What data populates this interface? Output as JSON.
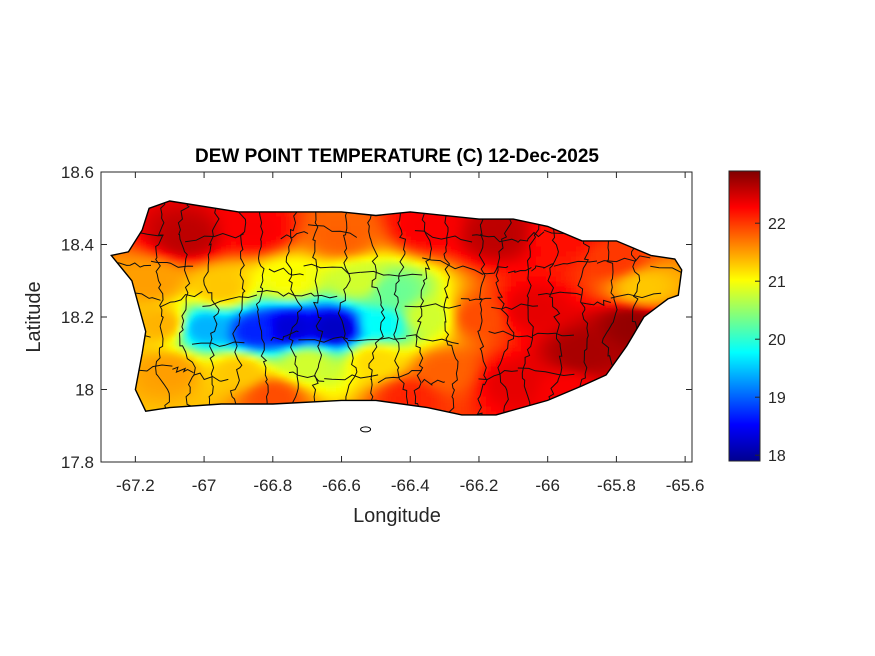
{
  "chart_data": {
    "type": "heatmap",
    "title": "DEW POINT TEMPERATURE (C) 12-Dec-2025",
    "xlabel": "Longitude",
    "ylabel": "Latitude",
    "xlim": [
      -67.3,
      -65.58
    ],
    "ylim": [
      17.8,
      18.6
    ],
    "x_ticks": [
      -67.2,
      -67,
      -66.8,
      -66.6,
      -66.4,
      -66.2,
      -66,
      -65.8,
      -65.6
    ],
    "x_tick_labels": [
      "-67.2",
      "-67",
      "-66.8",
      "-66.6",
      "-66.4",
      "-66.2",
      "-66",
      "-65.8",
      "-65.6"
    ],
    "y_ticks": [
      17.8,
      18,
      18.2,
      18.4,
      18.6
    ],
    "y_tick_labels": [
      "17.8",
      "18",
      "18.2",
      "18.4",
      "18.6"
    ],
    "colorbar": {
      "colormap": "jet",
      "range": [
        17.9,
        22.9
      ],
      "ticks": [
        18,
        19,
        20,
        21,
        22
      ],
      "tick_labels": [
        "18",
        "19",
        "20",
        "21",
        "22"
      ],
      "colors": [
        "#00008f",
        "#0000ff",
        "#00ffff",
        "#ffff00",
        "#ff0000",
        "#800000"
      ]
    },
    "coastline": [
      [
        -67.27,
        18.37
      ],
      [
        -67.22,
        18.38
      ],
      [
        -67.18,
        18.44
      ],
      [
        -67.16,
        18.5
      ],
      [
        -67.1,
        18.52
      ],
      [
        -66.9,
        18.49
      ],
      [
        -66.7,
        18.49
      ],
      [
        -66.6,
        18.49
      ],
      [
        -66.5,
        18.48
      ],
      [
        -66.4,
        18.49
      ],
      [
        -66.2,
        18.47
      ],
      [
        -66.1,
        18.47
      ],
      [
        -66.0,
        18.45
      ],
      [
        -65.9,
        18.41
      ],
      [
        -65.8,
        18.41
      ],
      [
        -65.7,
        18.37
      ],
      [
        -65.63,
        18.36
      ],
      [
        -65.61,
        18.33
      ],
      [
        -65.62,
        18.26
      ],
      [
        -65.65,
        18.25
      ],
      [
        -65.72,
        18.2
      ],
      [
        -65.77,
        18.12
      ],
      [
        -65.83,
        18.04
      ],
      [
        -65.9,
        18.01
      ],
      [
        -66.0,
        17.97
      ],
      [
        -66.15,
        17.93
      ],
      [
        -66.25,
        17.93
      ],
      [
        -66.35,
        17.95
      ],
      [
        -66.5,
        17.97
      ],
      [
        -66.6,
        17.97
      ],
      [
        -66.8,
        17.96
      ],
      [
        -66.95,
        17.96
      ],
      [
        -67.1,
        17.95
      ],
      [
        -67.17,
        17.94
      ],
      [
        -67.2,
        18.0
      ],
      [
        -67.18,
        18.1
      ],
      [
        -67.17,
        18.16
      ],
      [
        -67.21,
        18.3
      ],
      [
        -67.27,
        18.37
      ]
    ],
    "islets": [
      {
        "x": -66.53,
        "y": 17.89,
        "name": "Caja de Muertos"
      }
    ],
    "field_anchors": [
      {
        "x": -67.05,
        "y": 18.42,
        "value": 22.6
      },
      {
        "x": -66.85,
        "y": 18.44,
        "value": 22.3
      },
      {
        "x": -66.6,
        "y": 18.42,
        "value": 21.8
      },
      {
        "x": -66.35,
        "y": 18.45,
        "value": 22.3
      },
      {
        "x": -66.15,
        "y": 18.43,
        "value": 22.6
      },
      {
        "x": -65.95,
        "y": 18.42,
        "value": 22.2
      },
      {
        "x": -65.8,
        "y": 18.36,
        "value": 22.0
      },
      {
        "x": -65.72,
        "y": 18.28,
        "value": 21.3
      },
      {
        "x": -65.75,
        "y": 18.18,
        "value": 22.8
      },
      {
        "x": -65.9,
        "y": 18.1,
        "value": 22.7
      },
      {
        "x": -66.05,
        "y": 18.22,
        "value": 22.4
      },
      {
        "x": -66.2,
        "y": 18.2,
        "value": 21.9
      },
      {
        "x": -66.35,
        "y": 18.2,
        "value": 20.8
      },
      {
        "x": -66.45,
        "y": 18.27,
        "value": 20.3
      },
      {
        "x": -66.55,
        "y": 18.3,
        "value": 20.8
      },
      {
        "x": -66.75,
        "y": 18.3,
        "value": 21.0
      },
      {
        "x": -66.95,
        "y": 18.28,
        "value": 21.3
      },
      {
        "x": -67.15,
        "y": 18.3,
        "value": 21.5
      },
      {
        "x": -67.12,
        "y": 18.18,
        "value": 21.4
      },
      {
        "x": -67.0,
        "y": 18.17,
        "value": 19.4
      },
      {
        "x": -66.85,
        "y": 18.16,
        "value": 18.7
      },
      {
        "x": -66.75,
        "y": 18.17,
        "value": 18.3
      },
      {
        "x": -66.62,
        "y": 18.17,
        "value": 18.2
      },
      {
        "x": -66.48,
        "y": 18.18,
        "value": 19.8
      },
      {
        "x": -67.1,
        "y": 18.05,
        "value": 21.5
      },
      {
        "x": -66.9,
        "y": 18.05,
        "value": 21.3
      },
      {
        "x": -66.7,
        "y": 18.07,
        "value": 20.8
      },
      {
        "x": -66.5,
        "y": 18.08,
        "value": 21.2
      },
      {
        "x": -66.3,
        "y": 18.05,
        "value": 21.8
      },
      {
        "x": -66.1,
        "y": 18.02,
        "value": 22.4
      },
      {
        "x": -65.95,
        "y": 18.0,
        "value": 22.3
      },
      {
        "x": -66.8,
        "y": 17.98,
        "value": 21.9
      },
      {
        "x": -66.4,
        "y": 17.98,
        "value": 22.1
      }
    ]
  }
}
